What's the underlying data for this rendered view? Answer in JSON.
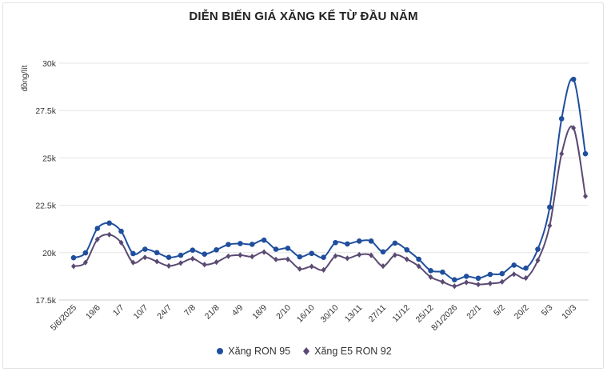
{
  "chart_data": {
    "type": "line",
    "title": "DIỄN BIẾN GIÁ XĂNG KỂ TỪ ĐẦU NĂM",
    "ylabel": "đồng/lít",
    "xlabel": "",
    "ylim": [
      17500,
      30000
    ],
    "yticks": [
      17500,
      20000,
      22500,
      25000,
      27500,
      30000
    ],
    "ytick_labels": [
      "17.5k",
      "20k",
      "22.5k",
      "25k",
      "27.5k",
      "30k"
    ],
    "x_tick_labels": [
      {
        "index": 0,
        "label": "5/6/2025"
      },
      {
        "index": 2,
        "label": "19/6"
      },
      {
        "index": 4,
        "label": "1/7"
      },
      {
        "index": 6,
        "label": "10/7"
      },
      {
        "index": 8,
        "label": "24/7"
      },
      {
        "index": 10,
        "label": "7/8"
      },
      {
        "index": 12,
        "label": "21/8"
      },
      {
        "index": 14,
        "label": "4/9"
      },
      {
        "index": 16,
        "label": "18/9"
      },
      {
        "index": 18,
        "label": "2/10"
      },
      {
        "index": 20,
        "label": "16/10"
      },
      {
        "index": 22,
        "label": "30/10"
      },
      {
        "index": 24,
        "label": "13/11"
      },
      {
        "index": 26,
        "label": "27/11"
      },
      {
        "index": 28,
        "label": "11/12"
      },
      {
        "index": 30,
        "label": "25/12"
      },
      {
        "index": 32,
        "label": "8/1/2026"
      },
      {
        "index": 34,
        "label": "22/1"
      },
      {
        "index": 36,
        "label": "5/2"
      },
      {
        "index": 38,
        "label": "20/2"
      },
      {
        "index": 40,
        "label": "5/3"
      },
      {
        "index": 42,
        "label": "10/3"
      }
    ],
    "grid": true,
    "legend_position": "bottom",
    "series": [
      {
        "name": "Xăng RON 95",
        "color": "#1f4e9c",
        "marker": "circle",
        "values": [
          19730,
          19990,
          21280,
          21560,
          21130,
          19950,
          20180,
          20000,
          19750,
          19860,
          20130,
          19920,
          20150,
          20430,
          20480,
          20440,
          20660,
          20180,
          20230,
          19780,
          19960,
          19750,
          20530,
          20460,
          20610,
          20610,
          20040,
          20500,
          20150,
          19650,
          19050,
          18970,
          18570,
          18750,
          18650,
          18850,
          18890,
          19340,
          19180,
          20180,
          22400,
          27070,
          29150,
          25220
        ]
      },
      {
        "name": "Xăng E5 RON 92",
        "color": "#5b4a73",
        "marker": "diamond",
        "values": [
          19280,
          19480,
          20700,
          20950,
          20530,
          19480,
          19750,
          19530,
          19300,
          19450,
          19680,
          19370,
          19500,
          19810,
          19870,
          19790,
          20030,
          19640,
          19650,
          19140,
          19270,
          19090,
          19820,
          19700,
          19890,
          19860,
          19290,
          19870,
          19650,
          19280,
          18710,
          18460,
          18230,
          18430,
          18320,
          18370,
          18460,
          18860,
          18660,
          19590,
          21430,
          25220,
          26580,
          22980
        ]
      }
    ]
  }
}
